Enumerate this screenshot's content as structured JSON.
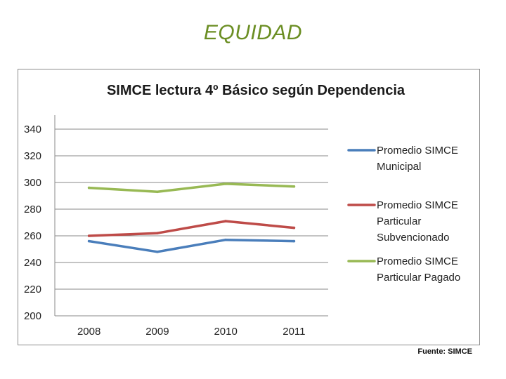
{
  "slide": {
    "title": "EQUIDAD",
    "source": "Fuente: SIMCE"
  },
  "chart_data": {
    "type": "line",
    "title": "SIMCE lectura 4º Básico según Dependencia",
    "categories": [
      "2008",
      "2009",
      "2010",
      "2011"
    ],
    "ylim": [
      200,
      340
    ],
    "yticks": [
      200,
      220,
      240,
      260,
      280,
      300,
      320,
      340
    ],
    "grid": true,
    "legend": "right",
    "series": [
      {
        "name": "Promedio SIMCE Municipal",
        "legend_lines": [
          "Promedio SIMCE",
          "Municipal"
        ],
        "color": "#4a7ebb",
        "values": [
          256,
          248,
          257,
          256
        ]
      },
      {
        "name": "Promedio SIMCE Particular Subvencionado",
        "legend_lines": [
          "Promedio SIMCE",
          "Particular",
          "Subvencionado"
        ],
        "color": "#be4b48",
        "values": [
          260,
          262,
          271,
          266
        ]
      },
      {
        "name": "Promedio SIMCE Particular Pagado",
        "legend_lines": [
          "Promedio SIMCE",
          "Particular Pagado"
        ],
        "color": "#98b954",
        "values": [
          296,
          293,
          299,
          297
        ]
      }
    ]
  }
}
